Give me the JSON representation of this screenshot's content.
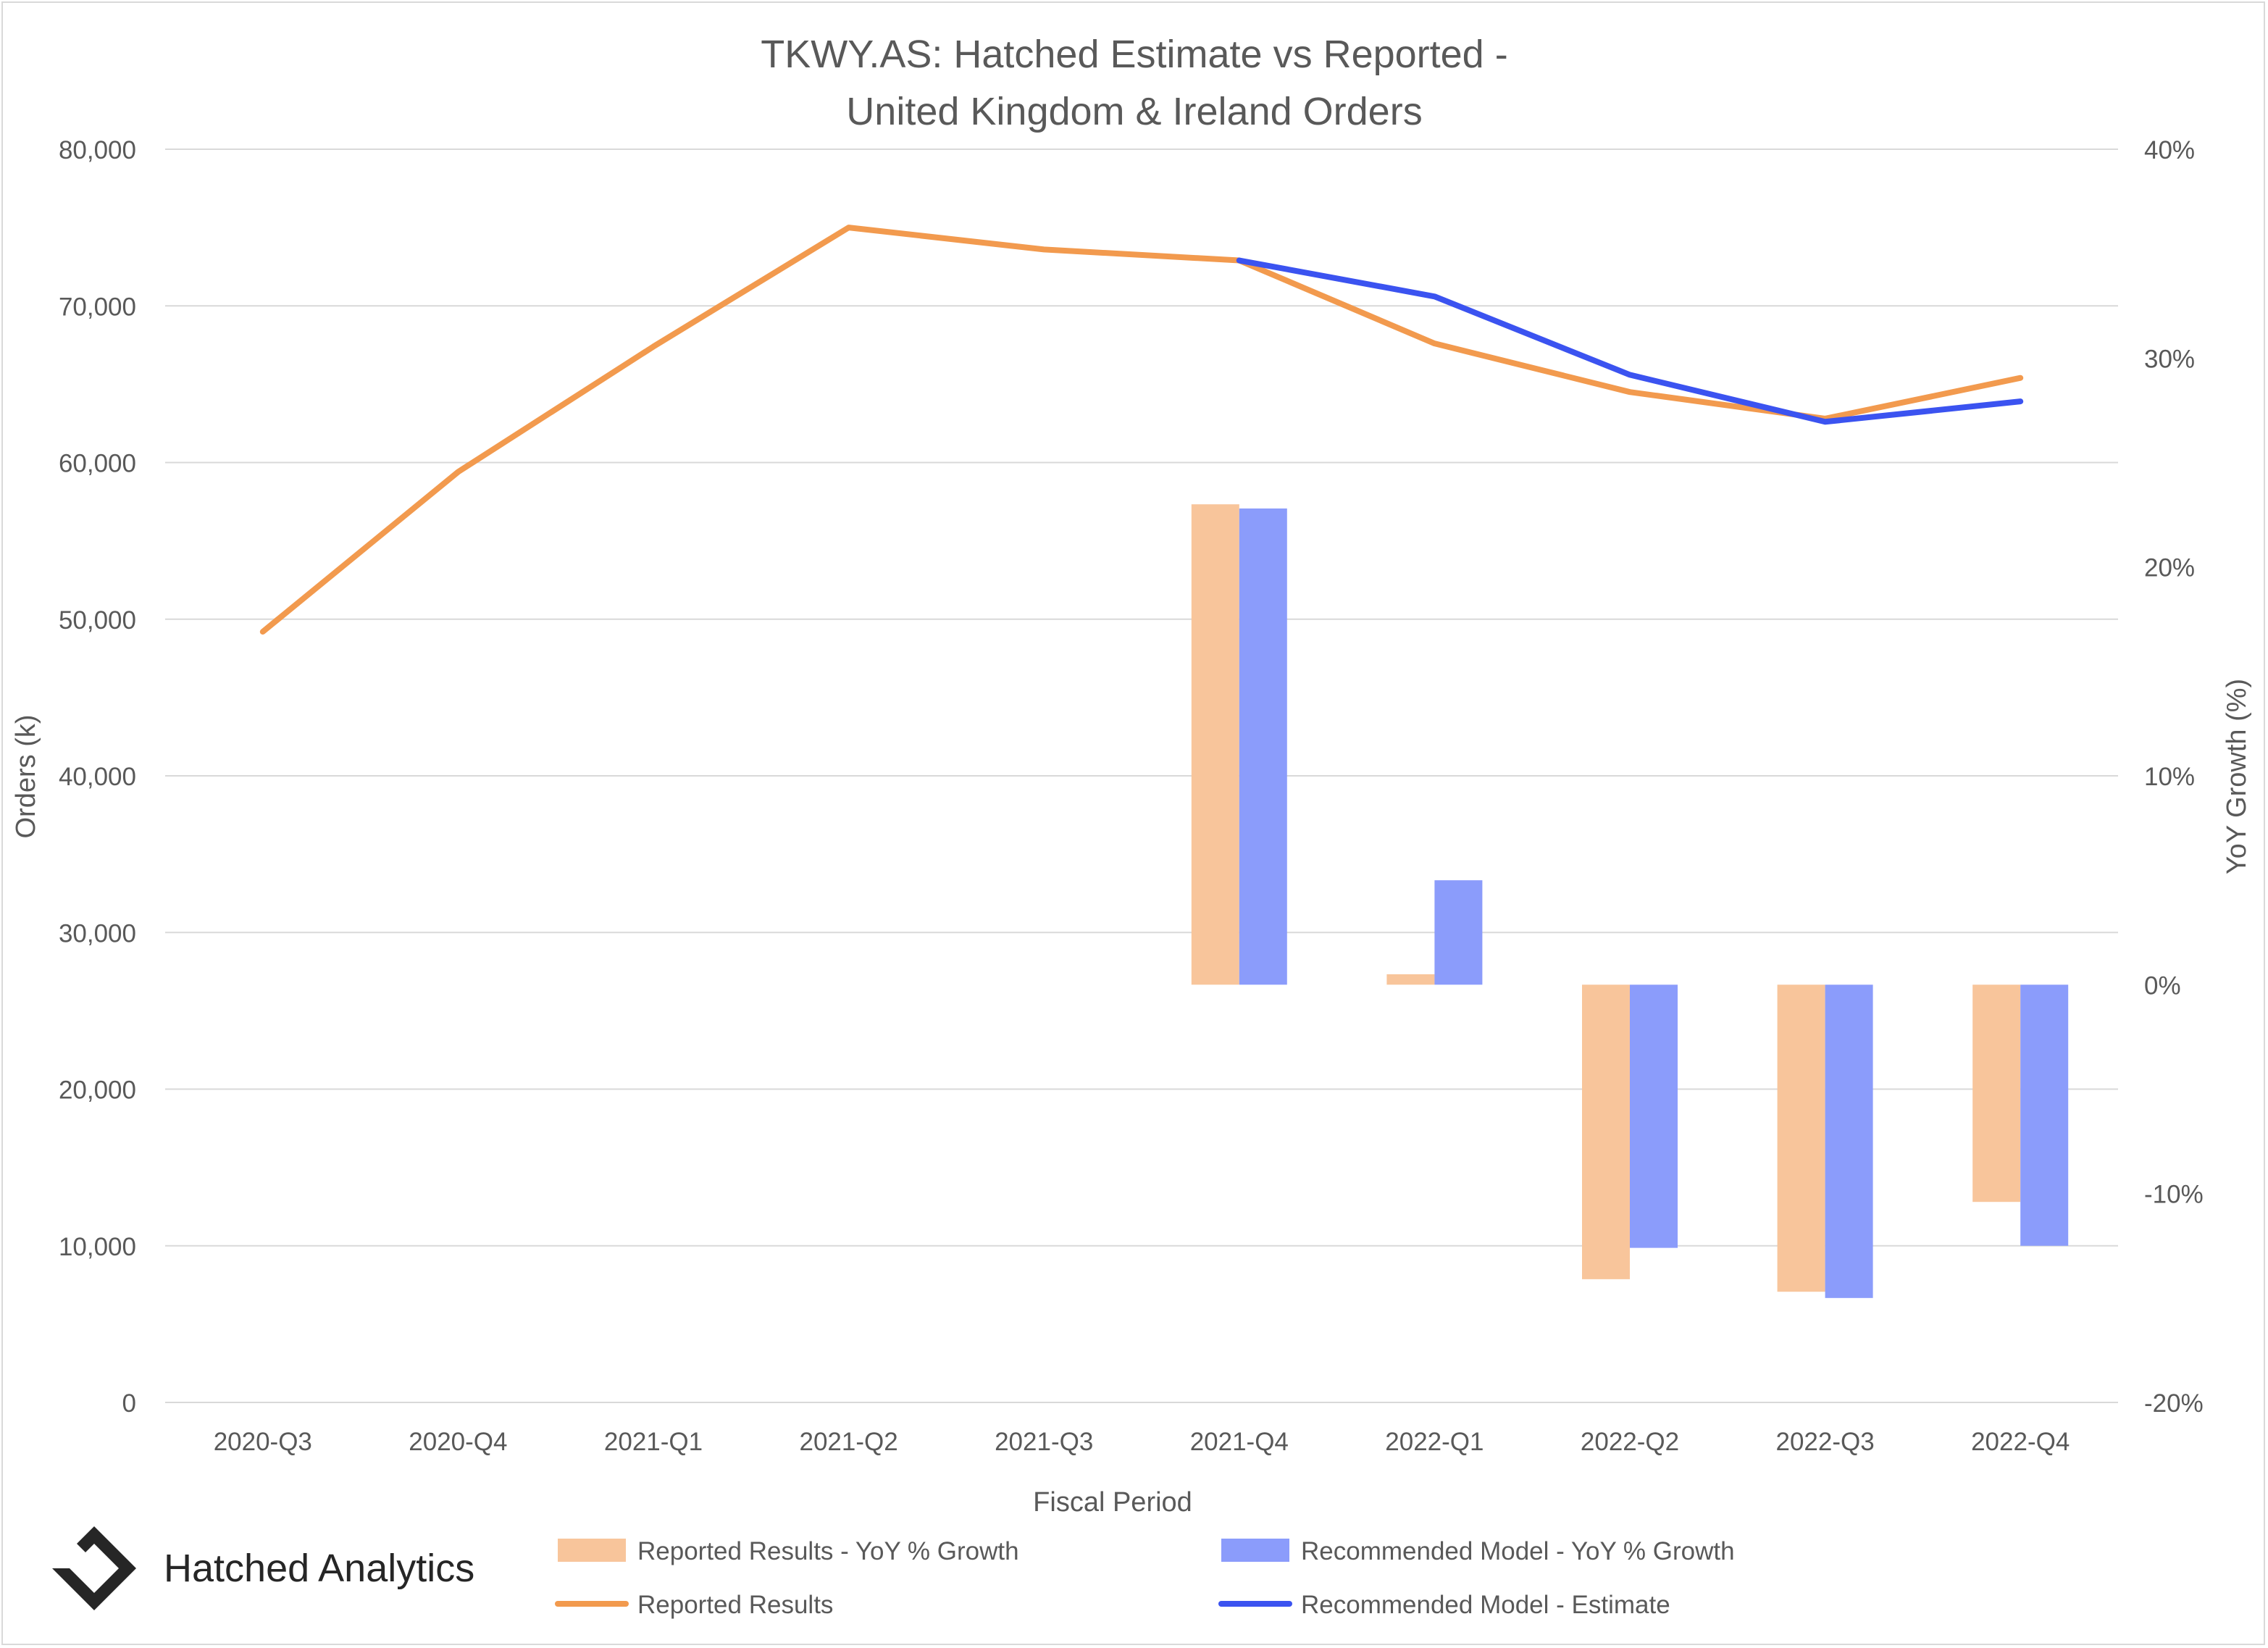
{
  "brand": {
    "name": "Hatched Analytics",
    "logo_icon": "hatched-diamond-logo-icon"
  },
  "chart_data": {
    "type": "bar",
    "title": "TKWY.AS: Hatched Estimate vs Reported -",
    "subtitle": "United Kingdom & Ireland Orders",
    "xlabel": "Fiscal Period",
    "ylabel": "Orders (k)",
    "y2label": "YoY Growth (%)",
    "categories": [
      "2020-Q3",
      "2020-Q4",
      "2021-Q1",
      "2021-Q2",
      "2021-Q3",
      "2021-Q4",
      "2022-Q1",
      "2022-Q2",
      "2022-Q3",
      "2022-Q4"
    ],
    "ylim": [
      0,
      80000
    ],
    "y_ticks": [
      0,
      10000,
      20000,
      30000,
      40000,
      50000,
      60000,
      70000,
      80000
    ],
    "y_tick_labels": [
      "0",
      "10,000",
      "20,000",
      "30,000",
      "40,000",
      "50,000",
      "60,000",
      "70,000",
      "80,000"
    ],
    "y2lim": [
      -0.2,
      0.4
    ],
    "y2_ticks": [
      -0.2,
      -0.1,
      0,
      0.1,
      0.2,
      0.3,
      0.4
    ],
    "y2_tick_labels": [
      "-20%",
      "-10%",
      "0%",
      "10%",
      "20%",
      "30%",
      "40%"
    ],
    "grid": true,
    "legend_position": "bottom",
    "bar_series": [
      {
        "name": "Reported Results - YoY % Growth",
        "axis": "right",
        "color": "#f8c59b",
        "values": [
          null,
          null,
          null,
          null,
          null,
          0.23,
          0.005,
          -0.141,
          -0.147,
          -0.104
        ]
      },
      {
        "name": "Recommended Model - YoY % Growth",
        "axis": "right",
        "color": "#8b9cfb",
        "values": [
          null,
          null,
          null,
          null,
          null,
          0.228,
          0.05,
          -0.126,
          -0.15,
          -0.125
        ]
      }
    ],
    "line_series": [
      {
        "name": "Reported Results",
        "axis": "left",
        "color": "#f29a4e",
        "values": [
          49200,
          59400,
          67400,
          75000,
          73600,
          72900,
          67600,
          64500,
          62800,
          65400
        ]
      },
      {
        "name": "Recommended Model - Estimate",
        "axis": "left",
        "color": "#3b53f0",
        "values": [
          null,
          null,
          null,
          null,
          null,
          72900,
          70600,
          65600,
          62600,
          63900
        ]
      }
    ]
  }
}
